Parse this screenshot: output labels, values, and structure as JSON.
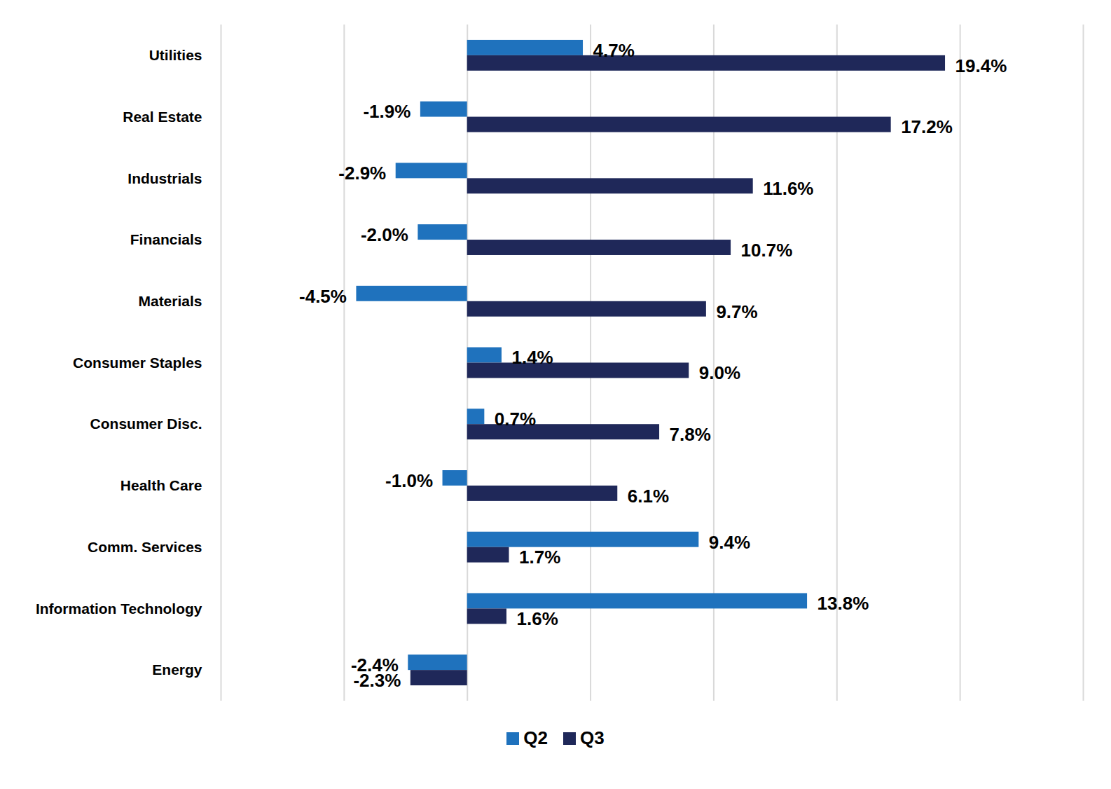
{
  "chart_data": {
    "type": "bar",
    "orientation": "horizontal",
    "categories": [
      "Utilities",
      "Real Estate",
      "Industrials",
      "Financials",
      "Materials",
      "Consumer Staples",
      "Consumer Disc.",
      "Health Care",
      "Comm. Services",
      "Information Technology",
      "Energy"
    ],
    "series": [
      {
        "name": "Q2",
        "color": "#1f72bd",
        "values": [
          4.7,
          -1.9,
          -2.9,
          -2.0,
          -4.5,
          1.4,
          0.7,
          -1.0,
          9.4,
          13.8,
          -2.4
        ],
        "value_labels": [
          "4.7%",
          "-1.9%",
          "-2.9%",
          "-2.0%",
          "-4.5%",
          "1.4%",
          "0.7%",
          "-1.0%",
          "9.4%",
          "13.8%",
          "-2.4%"
        ]
      },
      {
        "name": "Q3",
        "color": "#1f2859",
        "values": [
          19.4,
          17.2,
          11.6,
          10.7,
          9.7,
          9.0,
          7.8,
          6.1,
          1.7,
          1.6,
          -2.3
        ],
        "value_labels": [
          "19.4%",
          "17.2%",
          "11.6%",
          "10.7%",
          "9.7%",
          "9.0%",
          "7.8%",
          "6.1%",
          "1.7%",
          "1.6%",
          "-2.3%"
        ]
      }
    ],
    "xlim": [
      -10,
      25
    ],
    "xticks": [
      -10,
      -5,
      0,
      5,
      10,
      15,
      20,
      25
    ],
    "grid": true,
    "data_labels": true,
    "tick_labels": "y",
    "legend": "bottom"
  }
}
